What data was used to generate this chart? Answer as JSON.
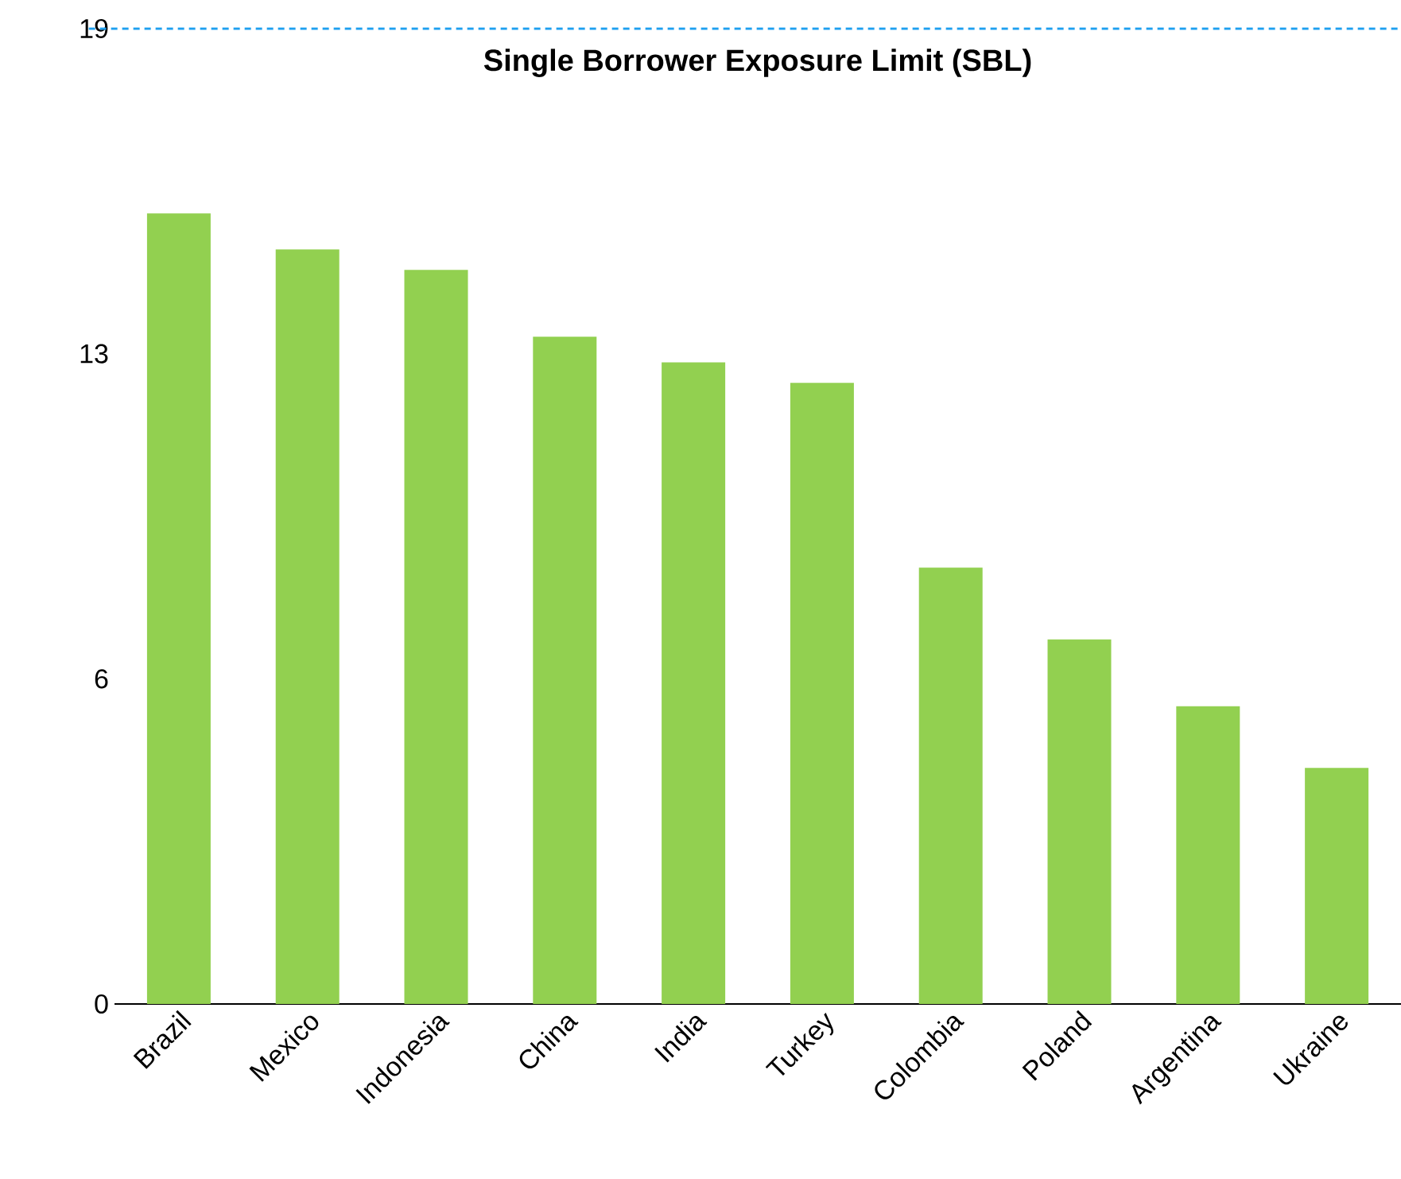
{
  "chart_data": {
    "type": "bar",
    "title": "Single Borrower Exposure Limit (SBL)",
    "categories": [
      "Brazil",
      "Mexico",
      "Indonesia",
      "China",
      "India",
      "Turkey",
      "Colombia",
      "Poland",
      "Argentina",
      "Ukraine"
    ],
    "values": [
      15.4,
      14.7,
      14.3,
      13.0,
      12.5,
      12.1,
      8.5,
      7.1,
      5.8,
      4.6
    ],
    "color": "#92d050",
    "ylim": [
      0,
      19
    ],
    "yticks": [
      {
        "value": 0,
        "label": "0"
      },
      {
        "value": 6.333,
        "label": "6"
      },
      {
        "value": 12.667,
        "label": "13"
      },
      {
        "value": 19,
        "label": "19"
      }
    ],
    "ref_lines": [
      {
        "axis": "y",
        "value": 19,
        "color": "#1ea0f0",
        "line_style": "dashed"
      }
    ]
  }
}
